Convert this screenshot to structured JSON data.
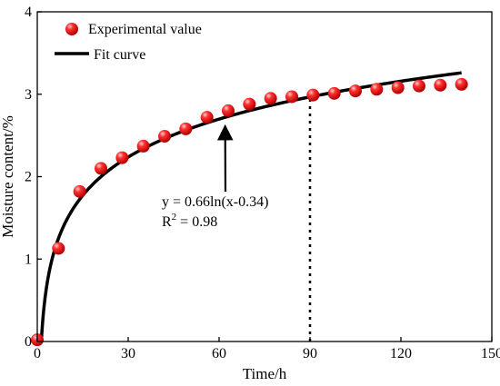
{
  "chart_data": {
    "type": "scatter",
    "title": "",
    "xlabel": "Time/h",
    "ylabel": "Moisture content/%",
    "xlim": [
      0,
      150
    ],
    "ylim": [
      0,
      4
    ],
    "xticks": [
      0,
      30,
      60,
      90,
      120,
      150
    ],
    "yticks": [
      0,
      1,
      2,
      3,
      4
    ],
    "xtick_labels": [
      "0",
      "30",
      "60",
      "90",
      "120",
      "150"
    ],
    "ytick_labels": [
      "0",
      "1",
      "2",
      "3",
      "4"
    ],
    "grid": false,
    "legend_position": "top-left",
    "series": [
      {
        "name": "Experimental value",
        "kind": "scatter",
        "color": "#e01010",
        "x": [
          0,
          7,
          14,
          21,
          28,
          35,
          42,
          49,
          56,
          63,
          70,
          77,
          84,
          91,
          98,
          105,
          112,
          119,
          126,
          133,
          140
        ],
        "y": [
          0.02,
          1.13,
          1.82,
          2.1,
          2.23,
          2.37,
          2.49,
          2.58,
          2.72,
          2.8,
          2.88,
          2.95,
          2.97,
          2.99,
          3.01,
          3.04,
          3.06,
          3.08,
          3.1,
          3.11,
          3.12
        ]
      },
      {
        "name": "Fit curve",
        "kind": "line",
        "color": "#000000",
        "equation": {
          "a": 0.66,
          "b": 0.34
        },
        "x_range": [
          1.4,
          140
        ]
      }
    ],
    "annotations": {
      "equation_text": "y = 0.66ln(x-0.34)",
      "r2_prefix": "R",
      "r2_sup": "2",
      "r2_suffix": " = 0.98",
      "arrow_to": {
        "x": 62,
        "y": 2.66
      },
      "dotted_line_x": 90,
      "dotted_line_to_y": 3.0
    }
  }
}
